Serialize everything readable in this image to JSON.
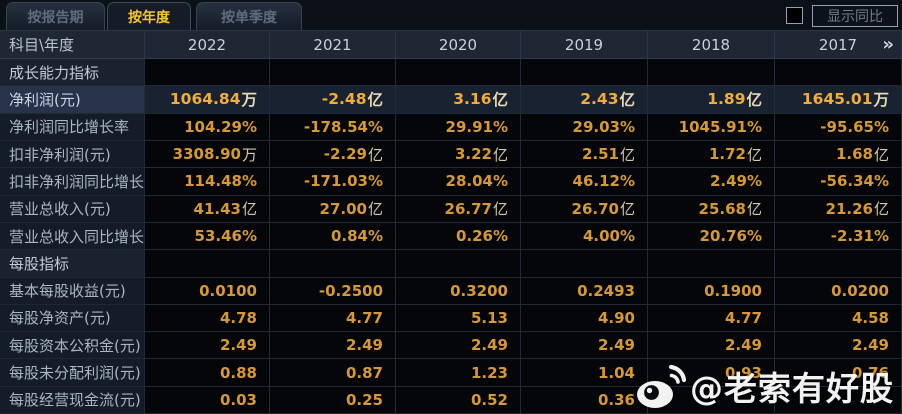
{
  "tabs": [
    {
      "id": "report",
      "label": "按报告期",
      "active": false
    },
    {
      "id": "year",
      "label": "按年度",
      "active": true
    },
    {
      "id": "quarter",
      "label": "按单季度",
      "active": false
    }
  ],
  "controls": {
    "compare_label": "显示同比",
    "compare_checked": false
  },
  "table": {
    "corner_header": "科目\\年度",
    "years": [
      "2022",
      "2021",
      "2020",
      "2019",
      "2018",
      "2017"
    ],
    "more_icon": "»",
    "rows": [
      {
        "type": "section",
        "label": "成长能力指标",
        "values": [
          "",
          "",
          "",
          "",
          "",
          ""
        ]
      },
      {
        "type": "highlight",
        "label": "净利润(元)",
        "values": [
          "1064.84万",
          "-2.48亿",
          "3.16亿",
          "2.43亿",
          "1.89亿",
          "1645.01万"
        ]
      },
      {
        "type": "data",
        "label": "净利润同比增长率",
        "values": [
          "104.29%",
          "-178.54%",
          "29.91%",
          "29.03%",
          "1045.91%",
          "-95.65%"
        ]
      },
      {
        "type": "data",
        "label": "扣非净利润(元)",
        "values": [
          "3308.90万",
          "-2.29亿",
          "3.22亿",
          "2.51亿",
          "1.72亿",
          "1.68亿"
        ]
      },
      {
        "type": "data",
        "label": "扣非净利润同比增长率",
        "values": [
          "114.48%",
          "-171.03%",
          "28.04%",
          "46.12%",
          "2.49%",
          "-56.34%"
        ]
      },
      {
        "type": "data",
        "label": "营业总收入(元)",
        "values": [
          "41.43亿",
          "27.00亿",
          "26.77亿",
          "26.70亿",
          "25.68亿",
          "21.26亿"
        ]
      },
      {
        "type": "data",
        "label": "营业总收入同比增长率",
        "values": [
          "53.46%",
          "0.84%",
          "0.26%",
          "4.00%",
          "20.76%",
          "-2.31%"
        ]
      },
      {
        "type": "section",
        "label": "每股指标",
        "values": [
          "",
          "",
          "",
          "",
          "",
          ""
        ]
      },
      {
        "type": "data",
        "label": "基本每股收益(元)",
        "values": [
          "0.0100",
          "-0.2500",
          "0.3200",
          "0.2493",
          "0.1900",
          "0.0200"
        ]
      },
      {
        "type": "data",
        "label": "每股净资产(元)",
        "values": [
          "4.78",
          "4.77",
          "5.13",
          "4.90",
          "4.77",
          "4.58"
        ]
      },
      {
        "type": "data",
        "label": "每股资本公积金(元)",
        "values": [
          "2.49",
          "2.49",
          "2.49",
          "2.49",
          "2.49",
          "2.49"
        ]
      },
      {
        "type": "data",
        "label": "每股未分配利润(元)",
        "values": [
          "0.88",
          "0.87",
          "1.23",
          "1.04",
          "0.93",
          "0.76"
        ]
      },
      {
        "type": "data",
        "label": "每股经营现金流(元)",
        "values": [
          "0.03",
          "0.25",
          "0.52",
          "0.36",
          "",
          ""
        ]
      }
    ]
  },
  "watermark": {
    "text": "@老索有好股",
    "icon": "weibo-icon"
  },
  "colors": {
    "accent_gold": "#f7c52e",
    "value_gold": "#d79934",
    "highlight_gold": "#f1ad3a",
    "header_bg": "#1e2733",
    "label_bg": "#151c27",
    "highlight_bg": "#273349",
    "value_bg": "#040609"
  }
}
